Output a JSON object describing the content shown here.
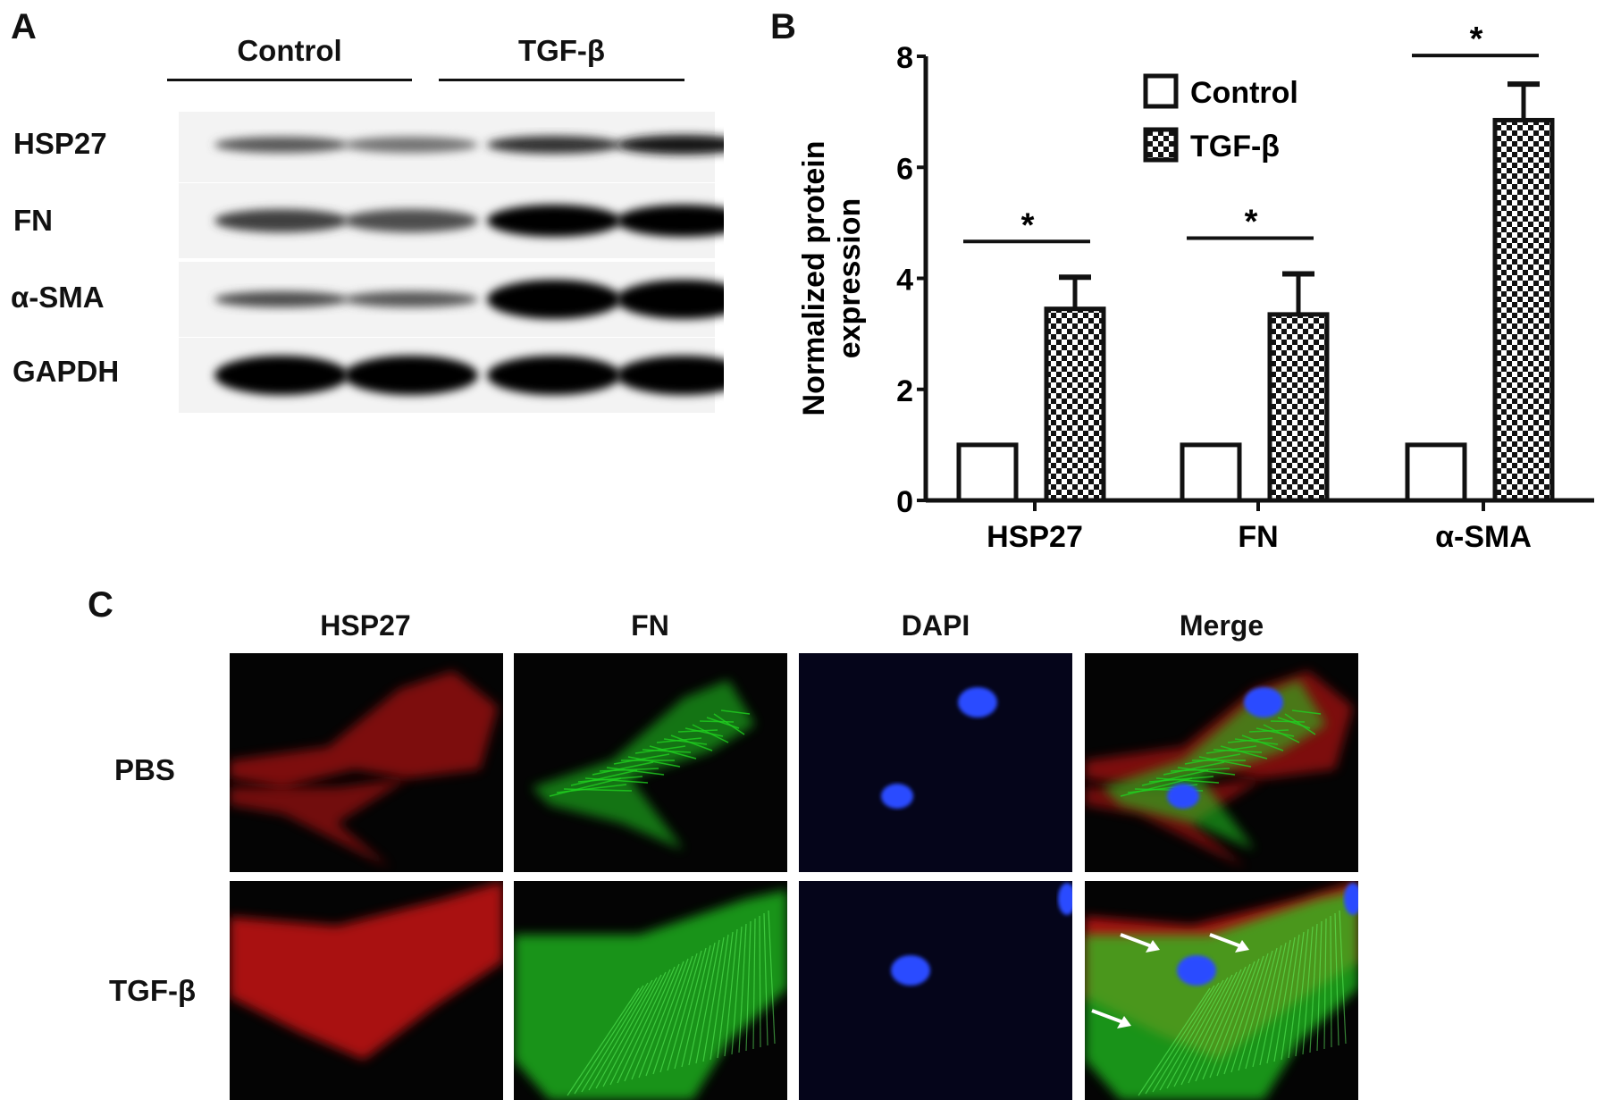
{
  "panel_a": {
    "label": "A",
    "groups": [
      "Control",
      "TGF-β"
    ],
    "rows": [
      "HSP27",
      "FN",
      "α-SMA",
      "GAPDH"
    ]
  },
  "panel_b": {
    "label": "B"
  },
  "panel_c": {
    "label": "C",
    "columns": [
      "HSP27",
      "FN",
      "DAPI",
      "Merge"
    ],
    "rows": [
      "PBS",
      "TGF-β"
    ],
    "colors": {
      "hsp27": "#e01818",
      "fn": "#20d020",
      "dapi": "#2a4cff"
    }
  },
  "chart_data": {
    "type": "bar",
    "title": "",
    "xlabel": "",
    "ylabel": "Normalized protein expression",
    "ylim": [
      0,
      8
    ],
    "yticks": [
      "0",
      "2",
      "4",
      "6",
      "8"
    ],
    "categories": [
      "HSP27",
      "FN",
      "α-SMA"
    ],
    "series": [
      {
        "name": "Control",
        "values": [
          1.0,
          1.0,
          1.0
        ],
        "errors": [
          0.0,
          0.02,
          0.02
        ],
        "fill": "white"
      },
      {
        "name": "TGF-β",
        "values": [
          3.45,
          3.35,
          6.85
        ],
        "errors": [
          0.57,
          0.73,
          0.65
        ],
        "fill": "checkerboard"
      }
    ],
    "significance": [
      "*",
      "*",
      "*"
    ],
    "legend": "top-center",
    "grid": false
  }
}
